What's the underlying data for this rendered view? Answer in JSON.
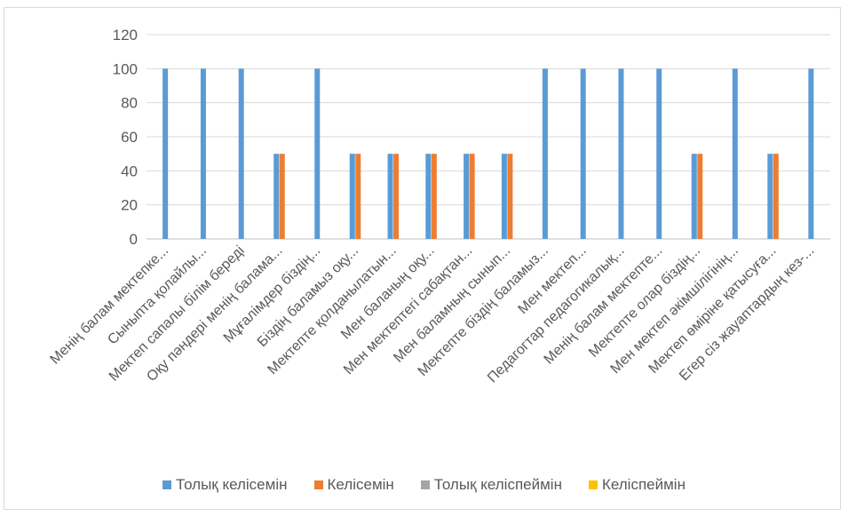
{
  "chart_data": {
    "type": "bar",
    "categories": [
      "Менің балам мектепке...",
      "Сыныпта қолайлы...",
      "Мектеп сапалы білім береді",
      "Оқу пәндері менің балама...",
      "Мұғалімдер біздің...",
      "Біздің баламыз оқу...",
      "Мектепте қолданылатын...",
      "Мен баланың оқу...",
      "Мен мектептегі сабақтан...",
      "Мен баламның сынып...",
      "Мектепте біздің баламыз...",
      "Мен мектеп...",
      "Педагогтар педагогикалық...",
      "Менің балам мектепте...",
      "Мектепте олар біздің...",
      "Мен мектеп әкімшілігінің...",
      "Мектеп өміріне қатысуға...",
      "Егер сіз жауаптардың кез-..."
    ],
    "series": [
      {
        "name": "Толық келісемін",
        "color": "#5b9bd5",
        "values": [
          100,
          100,
          100,
          50,
          100,
          50,
          50,
          50,
          50,
          50,
          100,
          100,
          100,
          100,
          50,
          100,
          50,
          100
        ]
      },
      {
        "name": "Келісемін",
        "color": "#ed7d31",
        "values": [
          0,
          0,
          0,
          50,
          0,
          50,
          50,
          50,
          50,
          50,
          0,
          0,
          0,
          0,
          50,
          0,
          50,
          0
        ]
      },
      {
        "name": "Толық келіспеймін",
        "color": "#a5a5a5",
        "values": [
          0,
          0,
          0,
          0,
          0,
          0,
          0,
          0,
          0,
          0,
          0,
          0,
          0,
          0,
          0,
          0,
          0,
          0
        ]
      },
      {
        "name": "Келіспеймін",
        "color": "#ffc000",
        "values": [
          0,
          0,
          0,
          0,
          0,
          0,
          0,
          0,
          0,
          0,
          0,
          0,
          0,
          0,
          0,
          0,
          0,
          0
        ]
      }
    ],
    "yticks": [
      "0",
      "20",
      "40",
      "60",
      "80",
      "100",
      "120"
    ],
    "ylim": [
      0,
      120
    ],
    "grid": true,
    "legend_position": "bottom"
  }
}
